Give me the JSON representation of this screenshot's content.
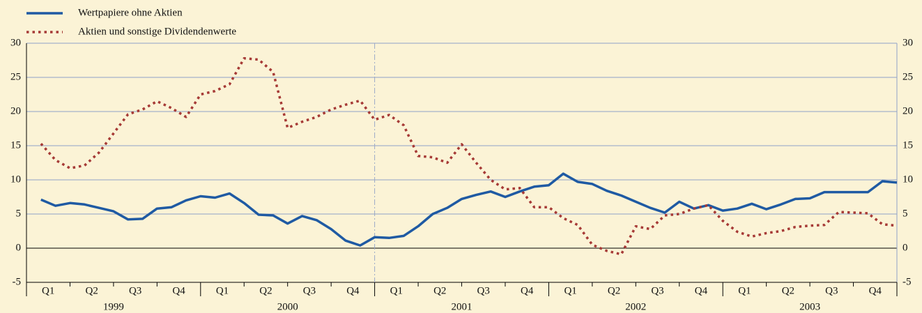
{
  "chart_data": {
    "type": "line",
    "series": [
      {
        "name": "Wertpapiere ohne Aktien",
        "color": "#1f5aa3",
        "dash": "solid",
        "values": [
          7.1,
          6.2,
          6.6,
          6.4,
          5.9,
          5.4,
          4.2,
          4.3,
          5.8,
          6.0,
          7.0,
          7.6,
          7.4,
          8.0,
          6.6,
          4.9,
          4.8,
          3.6,
          4.7,
          4.1,
          2.8,
          1.1,
          0.4,
          1.6,
          1.5,
          1.8,
          3.2,
          5.0,
          5.9,
          7.2,
          7.8,
          8.3,
          7.5,
          8.3,
          9.0,
          9.2,
          10.9,
          9.7,
          9.4,
          8.4,
          7.7,
          6.8,
          5.9,
          5.2,
          6.8,
          5.8,
          6.3,
          5.5,
          5.8,
          6.5,
          5.7,
          6.4,
          7.2,
          7.3,
          8.2,
          8.2,
          8.2,
          8.2,
          9.8,
          9.6
        ]
      },
      {
        "name": "Aktien und sonstige Dividendenwerte",
        "color": "#a63a36",
        "dash": "dotted",
        "values": [
          15.3,
          12.9,
          11.7,
          12.1,
          14.0,
          16.8,
          19.6,
          20.3,
          21.5,
          20.5,
          19.2,
          22.5,
          23.0,
          24.0,
          27.8,
          27.6,
          25.8,
          17.6,
          18.5,
          19.2,
          20.3,
          21.0,
          21.6,
          18.8,
          19.5,
          18.0,
          13.5,
          13.3,
          12.5,
          15.2,
          12.5,
          10.0,
          8.6,
          8.8,
          6.0,
          6.0,
          4.4,
          3.4,
          0.5,
          -0.4,
          -0.9,
          3.2,
          2.8,
          4.8,
          5.0,
          5.8,
          6.3,
          4.0,
          2.4,
          1.7,
          2.2,
          2.5,
          3.1,
          3.3,
          3.4,
          5.3,
          5.2,
          5.1,
          3.5,
          3.3
        ]
      }
    ],
    "quarters": [
      "Q1",
      "Q2",
      "Q3",
      "Q4",
      "Q1",
      "Q2",
      "Q3",
      "Q4",
      "Q1",
      "Q2",
      "Q3",
      "Q4",
      "Q1",
      "Q2",
      "Q3",
      "Q4",
      "Q1",
      "Q2",
      "Q3",
      "Q4"
    ],
    "years": [
      "1999",
      "2000",
      "2001",
      "2002",
      "2003"
    ],
    "ylim": [
      -5,
      30
    ],
    "yticks": [
      -5,
      0,
      5,
      10,
      15,
      20,
      25,
      30
    ],
    "y2lim": [
      -5,
      30
    ],
    "y2ticks": [
      -5,
      0,
      5,
      10,
      15,
      20,
      25,
      30
    ],
    "grid": true,
    "legend": "top-left"
  }
}
